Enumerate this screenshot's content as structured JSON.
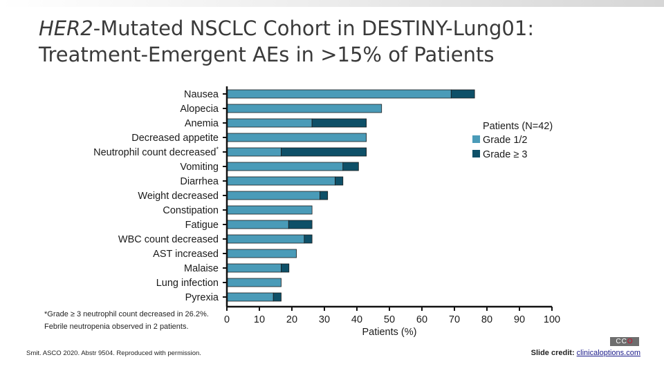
{
  "title": {
    "italic_part": "HER2",
    "line1_rest": "-Mutated NSCLC Cohort in DESTINY-Lung01:",
    "line2": "Treatment-Emergent AEs in >15% of Patients"
  },
  "footnote": "*Grade ≥ 3 neutrophil count decreased in 26.2%. Febrile neutropenia observed in 2 patients.",
  "source": "Smit. ASCO 2020. Abstr 9504. Reproduced with permission.",
  "credit": {
    "label": "Slide credit:",
    "link": "clinicaloptions.com"
  },
  "logo": {
    "left": "CC",
    "right": "O"
  },
  "colors": {
    "grade12": "#4a9bb8",
    "grade3": "#0e5068",
    "axis": "#111111"
  },
  "chart_data": {
    "type": "bar",
    "orientation": "horizontal",
    "stacked": true,
    "xlabel": "Patients (%)",
    "xlim": [
      0,
      100
    ],
    "xticks": [
      0,
      10,
      20,
      30,
      40,
      50,
      60,
      70,
      80,
      90,
      100
    ],
    "categories": [
      "Nausea",
      "Alopecia",
      "Anemia",
      "Decreased appetite",
      "Neutrophil count decreased*",
      "Vomiting",
      "Diarrhea",
      "Weight decreased",
      "Constipation",
      "Fatigue",
      "WBC count decreased",
      "AST increased",
      "Malaise",
      "Lung infection",
      "Pyrexia"
    ],
    "series": [
      {
        "name": "Grade 1/2",
        "values": [
          69.0,
          47.6,
          26.2,
          42.9,
          16.7,
          35.7,
          33.3,
          28.6,
          26.2,
          19.0,
          23.8,
          21.4,
          16.7,
          16.7,
          14.3
        ]
      },
      {
        "name": "Grade ≥ 3",
        "values": [
          7.2,
          0,
          16.7,
          0,
          26.2,
          4.8,
          2.4,
          2.4,
          0,
          7.2,
          2.4,
          0,
          2.4,
          0,
          2.4
        ]
      }
    ],
    "legend": {
      "title": "Patients (N=42)",
      "position": "right"
    }
  }
}
